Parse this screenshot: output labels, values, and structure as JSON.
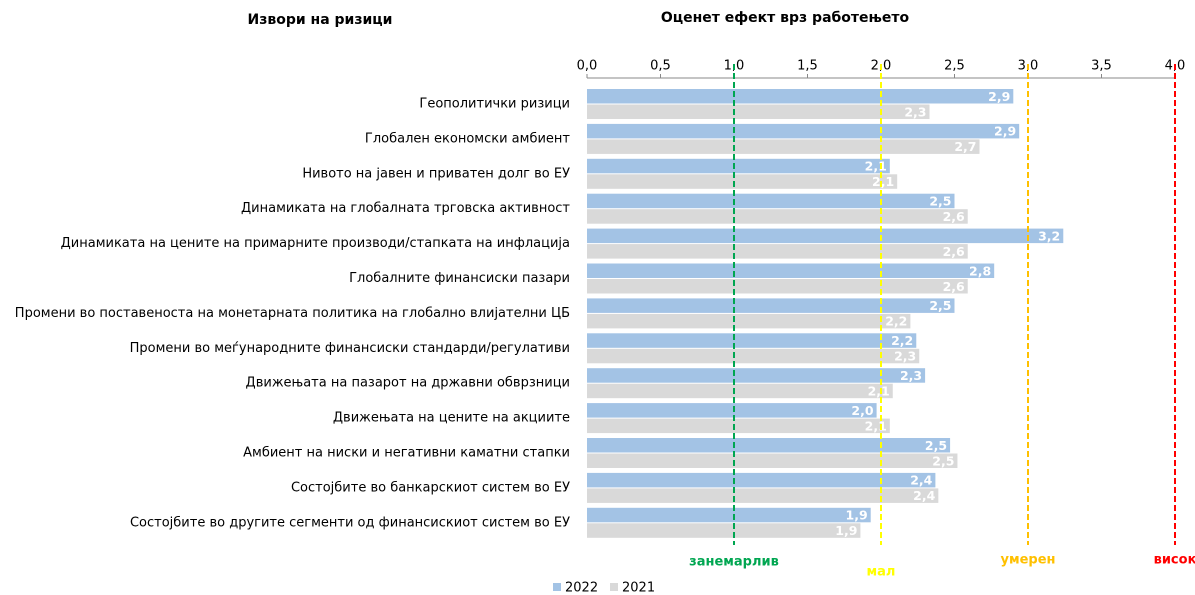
{
  "chart_data": {
    "type": "bar",
    "orientation": "horizontal",
    "title": "Оценет ефект врз работењето",
    "category_header": "Извори на ризици",
    "categories": [
      "Геополитички ризици",
      "Глобален економски амбиент",
      "Нивото на јавен и приватен долг во ЕУ",
      "Динамиката на глобалната трговска активност",
      "Динамиката на цените на примарните производи/стапката на инфлација",
      "Глобалните финансиски пазари",
      "Промени во поставеноста на монетарната политика на глобално влијателни ЦБ",
      "Промени во меѓународните финансиски стандарди/регулативи",
      "Движењата на пазарот на државни обврзници",
      "Движењата на цените на акциите",
      "Амбиент на ниски и негативни каматни стапки",
      "Состојбите во банкарскиот систем  во ЕУ",
      "Состојбите во другите сегменти од финансискиот систем во ЕУ"
    ],
    "series": [
      {
        "name": "2022",
        "color": "#a3c3e5",
        "values": [
          2.9,
          2.94,
          2.06,
          2.5,
          3.24,
          2.77,
          2.5,
          2.24,
          2.3,
          1.97,
          2.47,
          2.37,
          1.93
        ],
        "value_labels": [
          "2,9",
          "2,9",
          "2,1",
          "2,5",
          "3,2",
          "2,8",
          "2,5",
          "2,2",
          "2,3",
          "2,0",
          "2,5",
          "2,4",
          "1,9"
        ]
      },
      {
        "name": "2021",
        "color": "#d9d9d9",
        "values": [
          2.33,
          2.67,
          2.11,
          2.59,
          2.59,
          2.59,
          2.2,
          2.26,
          2.08,
          2.06,
          2.52,
          2.39,
          1.86
        ],
        "value_labels": [
          "2,3",
          "2,7",
          "2,1",
          "2,6",
          "2,6",
          "2,6",
          "2,2",
          "2,3",
          "2,1",
          "2,1",
          "2,5",
          "2,4",
          "1,9"
        ]
      }
    ],
    "xlim": [
      0,
      4
    ],
    "xticks": [
      {
        "value": 0,
        "label": "0,0"
      },
      {
        "value": 0.5,
        "label": "0,5"
      },
      {
        "value": 1,
        "label": "1,0"
      },
      {
        "value": 1.5,
        "label": "1,5"
      },
      {
        "value": 2,
        "label": "2,0"
      },
      {
        "value": 2.5,
        "label": "2,5"
      },
      {
        "value": 3,
        "label": "3,0"
      },
      {
        "value": 3.5,
        "label": "3,5"
      },
      {
        "value": 4,
        "label": "4,0"
      }
    ],
    "thresholds": [
      {
        "value": 1,
        "label": "занемарлив",
        "color": "#00a651"
      },
      {
        "value": 2,
        "label": "мал",
        "color": "#ffff00"
      },
      {
        "value": 3,
        "label": "умерен",
        "color": "#ffc000"
      },
      {
        "value": 4,
        "label": "висок",
        "color": "#ff0000"
      }
    ],
    "legend": "bottom"
  }
}
